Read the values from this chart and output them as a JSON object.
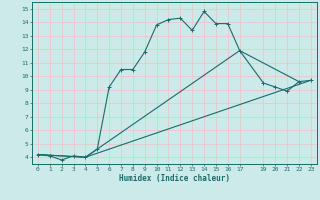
{
  "xlabel": "Humidex (Indice chaleur)",
  "bg_color": "#cceaea",
  "line_color": "#1a6b6b",
  "grid_color": "#e8c8c8",
  "xlim": [
    -0.5,
    23.5
  ],
  "ylim": [
    3.5,
    15.5
  ],
  "xticks": [
    0,
    1,
    2,
    3,
    4,
    5,
    6,
    7,
    8,
    9,
    10,
    11,
    12,
    13,
    14,
    15,
    16,
    17,
    19,
    20,
    21,
    22,
    23
  ],
  "yticks": [
    4,
    5,
    6,
    7,
    8,
    9,
    10,
    11,
    12,
    13,
    14,
    15
  ],
  "line1_x": [
    0,
    1,
    2,
    3,
    4,
    5,
    6,
    7,
    8,
    9,
    10,
    11,
    12,
    13,
    14,
    15,
    16,
    17,
    19,
    20,
    21,
    22,
    23
  ],
  "line1_y": [
    4.2,
    4.1,
    3.8,
    4.1,
    4.0,
    4.6,
    9.2,
    10.5,
    10.5,
    11.8,
    13.8,
    14.2,
    14.3,
    13.4,
    14.8,
    13.9,
    13.9,
    11.9,
    9.5,
    9.2,
    8.9,
    9.6,
    9.7
  ],
  "line2_x": [
    0,
    4,
    17,
    22
  ],
  "line2_y": [
    4.2,
    4.0,
    11.9,
    9.6
  ],
  "line3_x": [
    0,
    4,
    23
  ],
  "line3_y": [
    4.2,
    4.0,
    9.7
  ]
}
